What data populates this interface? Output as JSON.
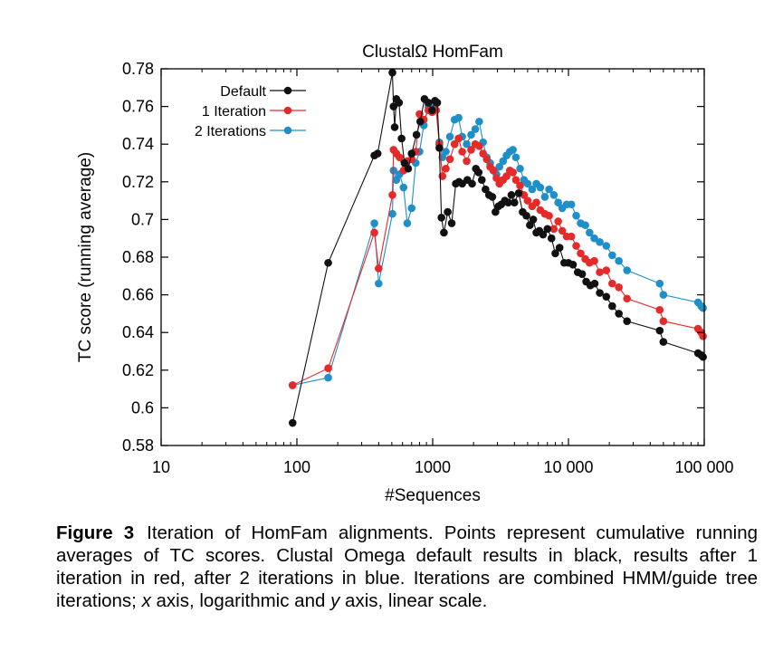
{
  "chart_data": {
    "type": "line",
    "title": "ClustalΩ HomFam",
    "xlabel": "#Sequences",
    "ylabel": "TC score (running average)",
    "xscale": "log",
    "xlim": [
      10,
      100000
    ],
    "ylim": [
      0.58,
      0.78
    ],
    "x_tick_values": [
      10,
      100,
      1000,
      10000,
      100000
    ],
    "x_tick_labels": [
      "10",
      "100",
      "1000",
      "10 000",
      "100 000"
    ],
    "y_tick_values": [
      0.58,
      0.6,
      0.62,
      0.64,
      0.66,
      0.68,
      0.7,
      0.72,
      0.74,
      0.76,
      0.78
    ],
    "y_tick_labels": [
      "0.58",
      "0.6",
      "0.62",
      "0.64",
      "0.66",
      "0.68",
      "0.7",
      "0.72",
      "0.74",
      "0.76",
      "0.78"
    ],
    "grid": false,
    "legend_position": "top-left",
    "series": [
      {
        "name": "Default",
        "color": "#111111",
        "points": [
          [
            93,
            0.592
          ],
          [
            170,
            0.677
          ],
          [
            372,
            0.734
          ],
          [
            393,
            0.735
          ],
          [
            505,
            0.778
          ],
          [
            515,
            0.76
          ],
          [
            525,
            0.749
          ],
          [
            540,
            0.764
          ],
          [
            565,
            0.762
          ],
          [
            590,
            0.743
          ],
          [
            620,
            0.73
          ],
          [
            660,
            0.727
          ],
          [
            700,
            0.735
          ],
          [
            760,
            0.745
          ],
          [
            810,
            0.752
          ],
          [
            870,
            0.764
          ],
          [
            930,
            0.762
          ],
          [
            990,
            0.758
          ],
          [
            1040,
            0.763
          ],
          [
            1080,
            0.762
          ],
          [
            1120,
            0.738
          ],
          [
            1160,
            0.701
          ],
          [
            1210,
            0.693
          ],
          [
            1290,
            0.704
          ],
          [
            1380,
            0.698
          ],
          [
            1480,
            0.719
          ],
          [
            1560,
            0.72
          ],
          [
            1650,
            0.719
          ],
          [
            1800,
            0.721
          ],
          [
            1950,
            0.719
          ],
          [
            2080,
            0.727
          ],
          [
            2180,
            0.725
          ],
          [
            2300,
            0.721
          ],
          [
            2450,
            0.716
          ],
          [
            2600,
            0.713
          ],
          [
            2750,
            0.712
          ],
          [
            2900,
            0.704
          ],
          [
            3050,
            0.707
          ],
          [
            3200,
            0.708
          ],
          [
            3400,
            0.71
          ],
          [
            3600,
            0.709
          ],
          [
            3800,
            0.713
          ],
          [
            4000,
            0.709
          ],
          [
            4300,
            0.714
          ],
          [
            4600,
            0.704
          ],
          [
            4900,
            0.702
          ],
          [
            5200,
            0.697
          ],
          [
            5500,
            0.7
          ],
          [
            5800,
            0.693
          ],
          [
            6100,
            0.694
          ],
          [
            6500,
            0.692
          ],
          [
            7000,
            0.695
          ],
          [
            7500,
            0.69
          ],
          [
            8000,
            0.682
          ],
          [
            8600,
            0.685
          ],
          [
            9300,
            0.677
          ],
          [
            10000,
            0.677
          ],
          [
            10800,
            0.676
          ],
          [
            11700,
            0.672
          ],
          [
            12600,
            0.671
          ],
          [
            13500,
            0.667
          ],
          [
            14500,
            0.665
          ],
          [
            15600,
            0.666
          ],
          [
            17000,
            0.661
          ],
          [
            19000,
            0.659
          ],
          [
            21000,
            0.654
          ],
          [
            23500,
            0.65
          ],
          [
            27000,
            0.646
          ],
          [
            47000,
            0.641
          ],
          [
            50000,
            0.635
          ],
          [
            90000,
            0.629
          ],
          [
            95000,
            0.628
          ],
          [
            98000,
            0.627
          ]
        ]
      },
      {
        "name": "1 Iteration",
        "color": "#e52a2a",
        "points": [
          [
            93,
            0.612
          ],
          [
            170,
            0.621
          ],
          [
            372,
            0.693
          ],
          [
            400,
            0.674
          ],
          [
            505,
            0.713
          ],
          [
            515,
            0.737
          ],
          [
            540,
            0.735
          ],
          [
            570,
            0.733
          ],
          [
            610,
            0.726
          ],
          [
            650,
            0.731
          ],
          [
            700,
            0.732
          ],
          [
            750,
            0.736
          ],
          [
            800,
            0.756
          ],
          [
            860,
            0.753
          ],
          [
            930,
            0.758
          ],
          [
            990,
            0.757
          ],
          [
            1060,
            0.758
          ],
          [
            1120,
            0.74
          ],
          [
            1180,
            0.723
          ],
          [
            1250,
            0.727
          ],
          [
            1340,
            0.732
          ],
          [
            1450,
            0.74
          ],
          [
            1550,
            0.743
          ],
          [
            1650,
            0.736
          ],
          [
            1780,
            0.731
          ],
          [
            1920,
            0.737
          ],
          [
            2060,
            0.74
          ],
          [
            2200,
            0.739
          ],
          [
            2350,
            0.735
          ],
          [
            2500,
            0.732
          ],
          [
            2650,
            0.728
          ],
          [
            2800,
            0.726
          ],
          [
            2950,
            0.722
          ],
          [
            3100,
            0.719
          ],
          [
            3300,
            0.721
          ],
          [
            3500,
            0.723
          ],
          [
            3700,
            0.726
          ],
          [
            3900,
            0.725
          ],
          [
            4100,
            0.721
          ],
          [
            4400,
            0.718
          ],
          [
            4700,
            0.713
          ],
          [
            5000,
            0.71
          ],
          [
            5400,
            0.707
          ],
          [
            5800,
            0.709
          ],
          [
            6200,
            0.705
          ],
          [
            6700,
            0.703
          ],
          [
            7200,
            0.702
          ],
          [
            7800,
            0.695
          ],
          [
            8400,
            0.699
          ],
          [
            9000,
            0.694
          ],
          [
            9700,
            0.691
          ],
          [
            10500,
            0.691
          ],
          [
            11400,
            0.686
          ],
          [
            12300,
            0.682
          ],
          [
            13300,
            0.679
          ],
          [
            14300,
            0.677
          ],
          [
            15500,
            0.678
          ],
          [
            17000,
            0.672
          ],
          [
            19000,
            0.673
          ],
          [
            21000,
            0.666
          ],
          [
            23500,
            0.664
          ],
          [
            27000,
            0.658
          ],
          [
            47000,
            0.652
          ],
          [
            50000,
            0.646
          ],
          [
            90000,
            0.642
          ],
          [
            95000,
            0.64
          ],
          [
            98000,
            0.638
          ]
        ]
      },
      {
        "name": "2 Iterations",
        "color": "#1f8fc9",
        "points": [
          [
            93,
            0.612
          ],
          [
            170,
            0.616
          ],
          [
            372,
            0.698
          ],
          [
            400,
            0.666
          ],
          [
            505,
            0.703
          ],
          [
            515,
            0.726
          ],
          [
            540,
            0.721
          ],
          [
            570,
            0.724
          ],
          [
            610,
            0.717
          ],
          [
            650,
            0.698
          ],
          [
            700,
            0.706
          ],
          [
            750,
            0.73
          ],
          [
            800,
            0.736
          ],
          [
            860,
            0.75
          ],
          [
            930,
            0.76
          ],
          [
            990,
            0.759
          ],
          [
            1060,
            0.762
          ],
          [
            1120,
            0.741
          ],
          [
            1180,
            0.733
          ],
          [
            1250,
            0.736
          ],
          [
            1340,
            0.744
          ],
          [
            1450,
            0.753
          ],
          [
            1550,
            0.754
          ],
          [
            1650,
            0.744
          ],
          [
            1780,
            0.74
          ],
          [
            1920,
            0.745
          ],
          [
            2060,
            0.748
          ],
          [
            2200,
            0.752
          ],
          [
            2350,
            0.741
          ],
          [
            2500,
            0.733
          ],
          [
            2650,
            0.73
          ],
          [
            2800,
            0.726
          ],
          [
            2950,
            0.724
          ],
          [
            3100,
            0.728
          ],
          [
            3300,
            0.731
          ],
          [
            3500,
            0.734
          ],
          [
            3700,
            0.736
          ],
          [
            3900,
            0.737
          ],
          [
            4100,
            0.733
          ],
          [
            4400,
            0.727
          ],
          [
            4700,
            0.721
          ],
          [
            5000,
            0.719
          ],
          [
            5400,
            0.716
          ],
          [
            5800,
            0.719
          ],
          [
            6200,
            0.717
          ],
          [
            6700,
            0.712
          ],
          [
            7200,
            0.716
          ],
          [
            7800,
            0.713
          ],
          [
            8400,
            0.709
          ],
          [
            9000,
            0.706
          ],
          [
            9700,
            0.708
          ],
          [
            10500,
            0.708
          ],
          [
            11400,
            0.702
          ],
          [
            12300,
            0.698
          ],
          [
            13300,
            0.697
          ],
          [
            14300,
            0.693
          ],
          [
            15500,
            0.69
          ],
          [
            17000,
            0.688
          ],
          [
            19000,
            0.686
          ],
          [
            21000,
            0.681
          ],
          [
            23500,
            0.678
          ],
          [
            27000,
            0.673
          ],
          [
            47000,
            0.666
          ],
          [
            50000,
            0.66
          ],
          [
            90000,
            0.656
          ],
          [
            95000,
            0.654
          ],
          [
            98000,
            0.653
          ]
        ]
      }
    ]
  },
  "caption": {
    "label": "Figure 3",
    "text_1": "Iteration of HomFam alignments. Points represent cumulative running averages of TC scores. Clustal Omega default results in black, results after 1 iteration in red, after 2 iterations in blue. Iterations are combined HMM/guide tree iterations; ",
    "x_var": "x",
    "text_2": " axis, logarithmic and ",
    "y_var": "y",
    "text_3": " axis, linear scale."
  }
}
